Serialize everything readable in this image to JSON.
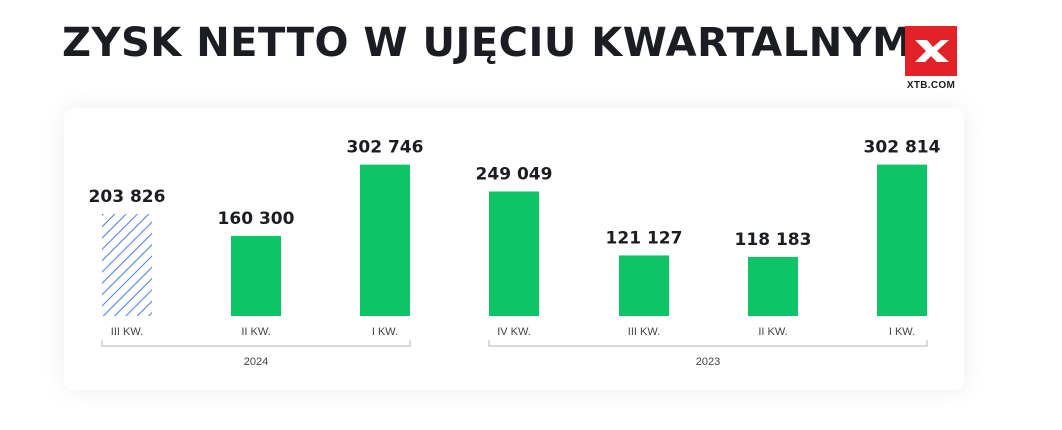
{
  "title": "ZYSK NETTO W UJĘCIU KWARTALNYM",
  "logo": {
    "text": "XTB.COM",
    "color": "#e32227"
  },
  "chart_data": {
    "type": "bar",
    "title": "ZYSK NETTO W UJĘCIU KWARTALNYM",
    "ylim": [
      0,
      320000
    ],
    "bar_color": "#0dc566",
    "hatched_color": "#4a7fe0",
    "bars": [
      {
        "category": "III KW.",
        "group": "2024",
        "value": 203826,
        "label": "203 826",
        "style": "hatched"
      },
      {
        "category": "II KW.",
        "group": "2024",
        "value": 160300,
        "label": "160 300",
        "style": "solid"
      },
      {
        "category": "I KW.",
        "group": "2024",
        "value": 302746,
        "label": "302 746",
        "style": "solid"
      },
      {
        "category": "IV KW.",
        "group": "2023",
        "value": 249049,
        "label": "249 049",
        "style": "solid"
      },
      {
        "category": "III KW.",
        "group": "2023",
        "value": 121127,
        "label": "121 127",
        "style": "solid"
      },
      {
        "category": "II KW.",
        "group": "2023",
        "value": 118183,
        "label": "118 183",
        "style": "solid"
      },
      {
        "category": "I KW.",
        "group": "2023",
        "value": 302814,
        "label": "302 814",
        "style": "solid"
      }
    ],
    "groups": [
      "2024",
      "2023"
    ]
  }
}
